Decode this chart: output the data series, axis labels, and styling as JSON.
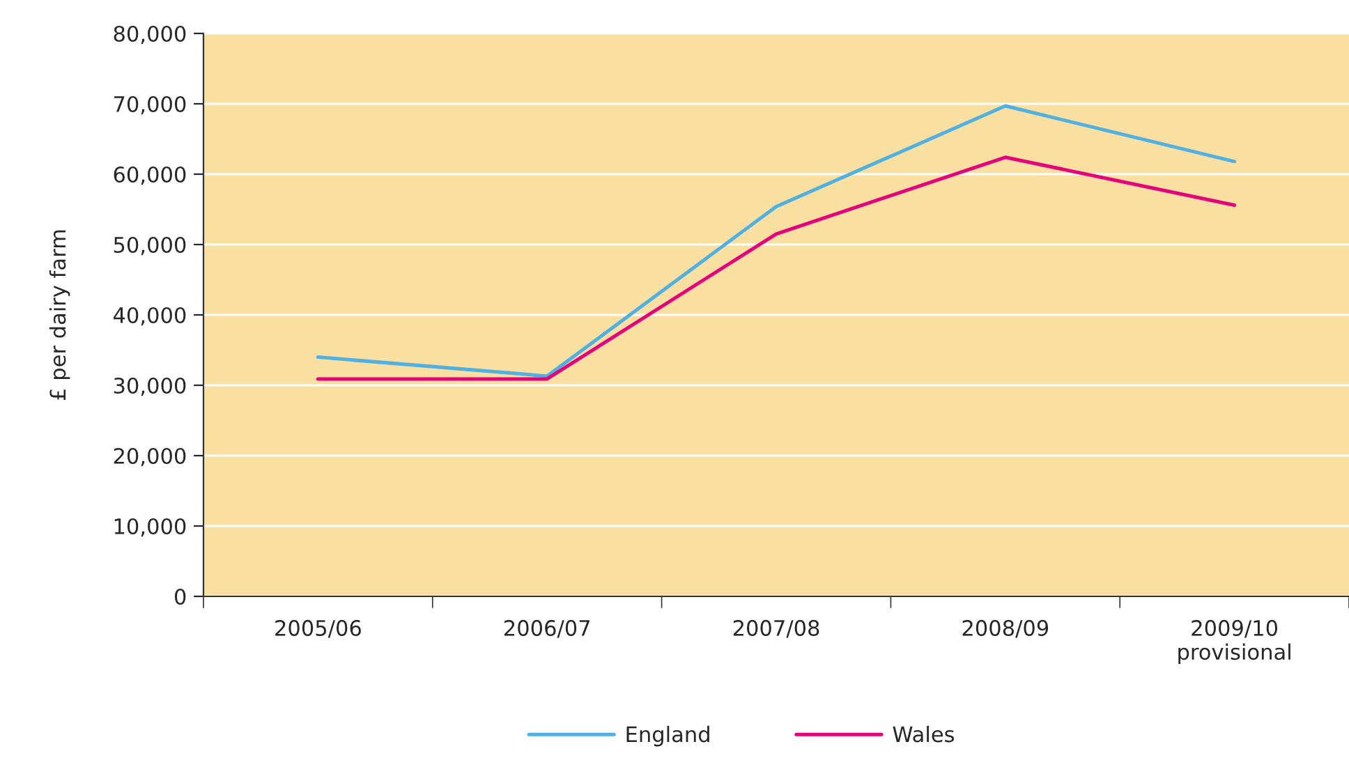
{
  "chart_data": {
    "type": "line",
    "ylabel": "£ per dairy farm",
    "categories": [
      "2005/06",
      "2006/07",
      "2007/08",
      "2008/09",
      "2009/10\nprovisional"
    ],
    "series": [
      {
        "name": "England",
        "color": "#4fb0e3",
        "values": [
          34000,
          31300,
          55400,
          69700,
          61800
        ]
      },
      {
        "name": "Wales",
        "color": "#e5007d",
        "values": [
          30900,
          30900,
          51500,
          62400,
          55600
        ]
      }
    ],
    "ylim": [
      0,
      80000
    ],
    "yticks": [
      {
        "value": 0,
        "label": "0"
      },
      {
        "value": 10000,
        "label": "10,000"
      },
      {
        "value": 20000,
        "label": "20,000"
      },
      {
        "value": 30000,
        "label": "30,000"
      },
      {
        "value": 40000,
        "label": "40,000"
      },
      {
        "value": 50000,
        "label": "50,000"
      },
      {
        "value": 60000,
        "label": "60,000"
      },
      {
        "value": 70000,
        "label": "70,000"
      },
      {
        "value": 80000,
        "label": "80,000"
      }
    ],
    "grid": "y",
    "legend": "bottom",
    "marker": "none",
    "line_style": "solid"
  }
}
